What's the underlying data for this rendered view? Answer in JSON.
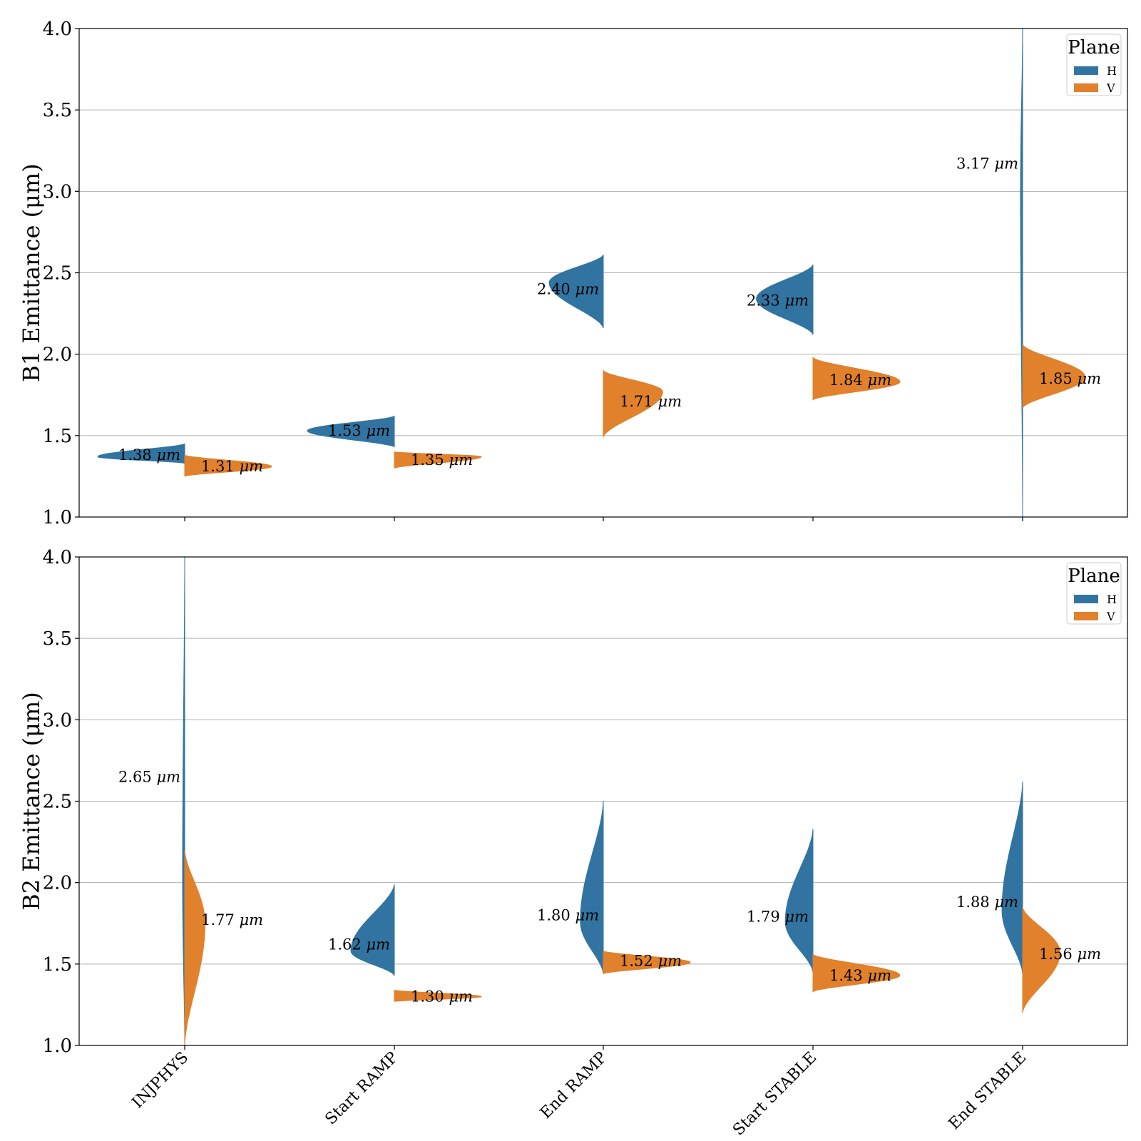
{
  "colors": {
    "H": "#3274a1",
    "V": "#e1812c"
  },
  "chart_data": [
    {
      "type": "violin",
      "split": true,
      "ylabel": "B1 Emittance (μm)",
      "ylim": [
        1.0,
        4.0
      ],
      "yticks": [
        "1.0",
        "1.5",
        "2.0",
        "2.5",
        "3.0",
        "3.5",
        "4.0"
      ],
      "grid": true,
      "legend": {
        "title": "Plane",
        "entries": [
          "H",
          "V"
        ],
        "placement": "top-right"
      },
      "categories": [
        "INJPHYS",
        "Start RAMP",
        "End RAMP",
        "Start STABLE",
        "End STABLE"
      ],
      "series": [
        {
          "name": "H",
          "range": [
            [
              1.33,
              1.45
            ],
            [
              1.43,
              1.62
            ],
            [
              2.16,
              2.61
            ],
            [
              2.12,
              2.55
            ],
            [
              1.0,
              4.0
            ]
          ],
          "mode": [
            1.37,
            1.53,
            2.44,
            2.34,
            3.0
          ],
          "median_labels": [
            "1.38 μm",
            "1.53 μm",
            "2.40 μm",
            "2.33 μm",
            "3.17 μm"
          ]
        },
        {
          "name": "V",
          "range": [
            [
              1.25,
              1.38
            ],
            [
              1.3,
              1.4
            ],
            [
              1.49,
              1.9
            ],
            [
              1.72,
              1.98
            ],
            [
              1.67,
              2.06
            ]
          ],
          "mode": [
            1.31,
            1.37,
            1.77,
            1.83,
            1.86
          ],
          "median_labels": [
            "1.31 μm",
            "1.35 μm",
            "1.71 μm",
            "1.84 μm",
            "1.85 μm"
          ]
        }
      ]
    },
    {
      "type": "violin",
      "split": true,
      "ylabel": "B2 Emittance (μm)",
      "ylim": [
        1.0,
        4.0
      ],
      "yticks": [
        "1.0",
        "1.5",
        "2.0",
        "2.5",
        "3.0",
        "3.5",
        "4.0"
      ],
      "grid": true,
      "legend": {
        "title": "Plane",
        "entries": [
          "H",
          "V"
        ],
        "placement": "top-right"
      },
      "categories": [
        "INJPHYS",
        "Start RAMP",
        "End RAMP",
        "Start STABLE",
        "End STABLE"
      ],
      "series": [
        {
          "name": "H",
          "range": [
            [
              1.0,
              4.0
            ],
            [
              1.43,
              1.99
            ],
            [
              1.44,
              2.5
            ],
            [
              1.45,
              2.33
            ],
            [
              1.44,
              2.62
            ]
          ],
          "mode": [
            2.0,
            1.58,
            1.76,
            1.76,
            1.83
          ],
          "median_labels": [
            "2.65 μm",
            "1.62 μm",
            "1.80 μm",
            "1.79 μm",
            "1.88 μm"
          ]
        },
        {
          "name": "V",
          "range": [
            [
              1.0,
              2.2
            ],
            [
              1.27,
              1.34
            ],
            [
              1.44,
              1.58
            ],
            [
              1.33,
              1.56
            ],
            [
              1.2,
              1.85
            ]
          ],
          "mode": [
            1.75,
            1.3,
            1.51,
            1.43,
            1.57
          ],
          "median_labels": [
            "1.77 μm",
            "1.30 μm",
            "1.52 μm",
            "1.43 μm",
            "1.56 μm"
          ]
        }
      ]
    }
  ]
}
